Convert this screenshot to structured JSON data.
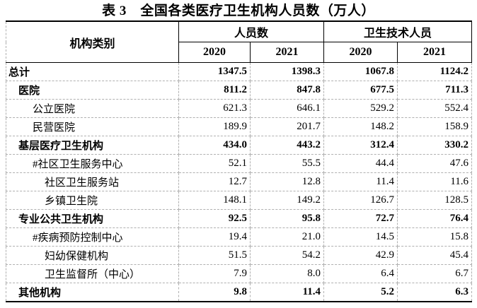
{
  "page_title": "表 3　全国各类医疗卫生机构人员数（万人）",
  "colors": {
    "background": "#ffffff",
    "text": "#000000",
    "solid_border": "#000000",
    "dashed_border": "#b0b0b0"
  },
  "table": {
    "headers": {
      "category": "机构类别",
      "groups": [
        {
          "label": "人员数",
          "years": [
            "2020",
            "2021"
          ]
        },
        {
          "label": "卫生技术人员",
          "years": [
            "2020",
            "2021"
          ]
        }
      ]
    },
    "rows": [
      {
        "label": "总计",
        "indent": 0,
        "bold": true,
        "values": [
          "1347.5",
          "1398.3",
          "1067.8",
          "1124.2"
        ]
      },
      {
        "label": "医院",
        "indent": 1,
        "bold": true,
        "values": [
          "811.2",
          "847.8",
          "677.5",
          "711.3"
        ]
      },
      {
        "label": "公立医院",
        "indent": 2,
        "bold": false,
        "values": [
          "621.3",
          "646.1",
          "529.2",
          "552.4"
        ]
      },
      {
        "label": "民营医院",
        "indent": 2,
        "bold": false,
        "values": [
          "189.9",
          "201.7",
          "148.2",
          "158.9"
        ]
      },
      {
        "label": "基层医疗卫生机构",
        "indent": 1,
        "bold": true,
        "values": [
          "434.0",
          "443.2",
          "312.4",
          "330.2"
        ]
      },
      {
        "label": "#社区卫生服务中心",
        "indent": 2,
        "bold": false,
        "values": [
          "52.1",
          "55.5",
          "44.4",
          "47.6"
        ]
      },
      {
        "label": "社区卫生服务站",
        "indent": 3,
        "bold": false,
        "values": [
          "12.7",
          "12.8",
          "11.4",
          "11.6"
        ]
      },
      {
        "label": "乡镇卫生院",
        "indent": 3,
        "bold": false,
        "values": [
          "148.1",
          "149.2",
          "126.7",
          "128.5"
        ]
      },
      {
        "label": "专业公共卫生机构",
        "indent": 1,
        "bold": true,
        "values": [
          "92.5",
          "95.8",
          "72.7",
          "76.4"
        ]
      },
      {
        "label": "#疾病预防控制中心",
        "indent": 2,
        "bold": false,
        "values": [
          "19.4",
          "21.0",
          "14.5",
          "15.8"
        ]
      },
      {
        "label": "妇幼保健机构",
        "indent": 3,
        "bold": false,
        "values": [
          "51.5",
          "54.2",
          "42.9",
          "45.4"
        ]
      },
      {
        "label": "卫生监督所（中心）",
        "indent": 3,
        "bold": false,
        "values": [
          "7.9",
          "8.0",
          "6.4",
          "6.7"
        ]
      },
      {
        "label": "其他机构",
        "indent": 1,
        "bold": true,
        "values": [
          "9.8",
          "11.4",
          "5.2",
          "6.3"
        ]
      }
    ]
  }
}
